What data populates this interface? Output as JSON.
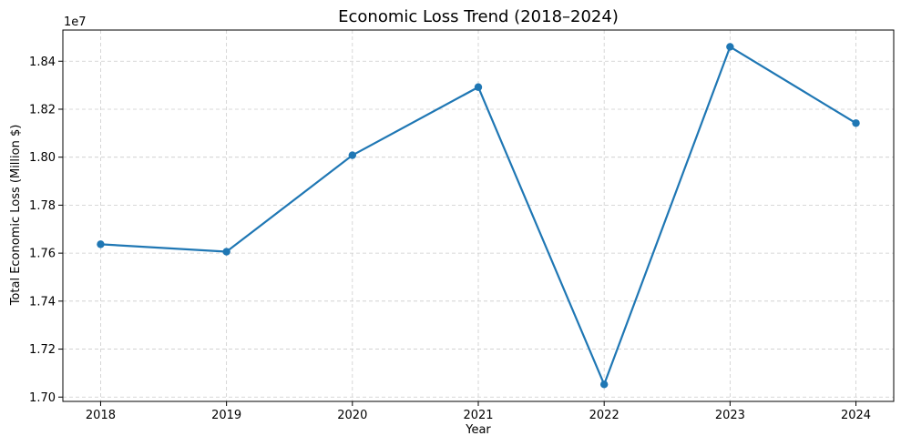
{
  "chart_data": {
    "type": "line",
    "title": "Economic Loss Trend (2018–2024)",
    "xlabel": "Year",
    "ylabel": "Total Economic Loss (Million $)",
    "y_offset_label": "1e7",
    "y_scale_factor": 10000000,
    "x": [
      2018,
      2019,
      2020,
      2021,
      2022,
      2023,
      2024
    ],
    "x_tick_labels": [
      "2018",
      "2019",
      "2020",
      "2021",
      "2022",
      "2023",
      "2024"
    ],
    "series": [
      {
        "values": [
          17637000,
          17606000,
          18008000,
          18292000,
          17053000,
          18460000,
          18142000
        ],
        "color": "#1f77b4",
        "marker": "circle"
      }
    ],
    "y_ticks": [
      1.7,
      1.72,
      1.74,
      1.76,
      1.78,
      1.8,
      1.82,
      1.84
    ],
    "y_tick_labels": [
      "1.70",
      "1.72",
      "1.74",
      "1.76",
      "1.78",
      "1.80",
      "1.82",
      "1.84"
    ],
    "xlim": [
      2017.7,
      2024.3
    ],
    "ylim": [
      16982000,
      18530000
    ],
    "grid": true,
    "grid_style": "dashed",
    "legend": "none"
  }
}
